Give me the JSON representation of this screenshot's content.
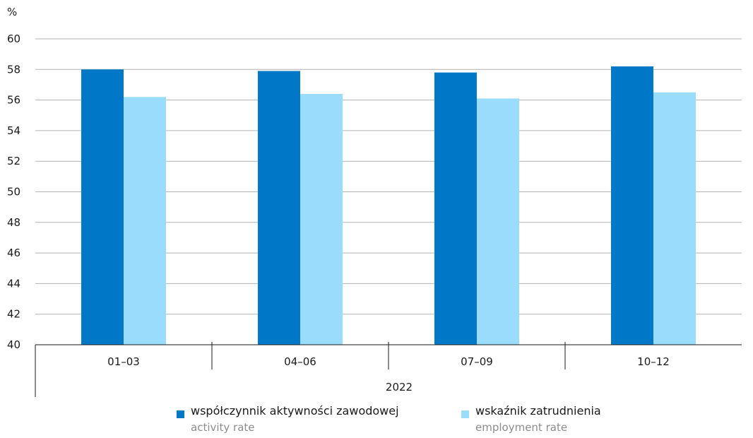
{
  "chart_data": {
    "type": "bar",
    "y_unit_label": "%",
    "ylim": [
      40,
      60
    ],
    "y_ticks": [
      40,
      42,
      44,
      46,
      48,
      50,
      52,
      54,
      56,
      58,
      60
    ],
    "grid": true,
    "categories": [
      "01–03",
      "04–06",
      "07–09",
      "10–12"
    ],
    "group_label": "2022",
    "series": [
      {
        "name": "współczynnik aktywności zawodowej",
        "name_en": "activity rate",
        "color": "#0078c8",
        "values": [
          58.0,
          57.9,
          57.8,
          58.2
        ]
      },
      {
        "name": "wskaźnik zatrudnienia",
        "name_en": "employment rate",
        "color": "#99dcfb",
        "values": [
          56.2,
          56.4,
          56.1,
          56.5
        ]
      }
    ],
    "legend_position": "bottom"
  }
}
